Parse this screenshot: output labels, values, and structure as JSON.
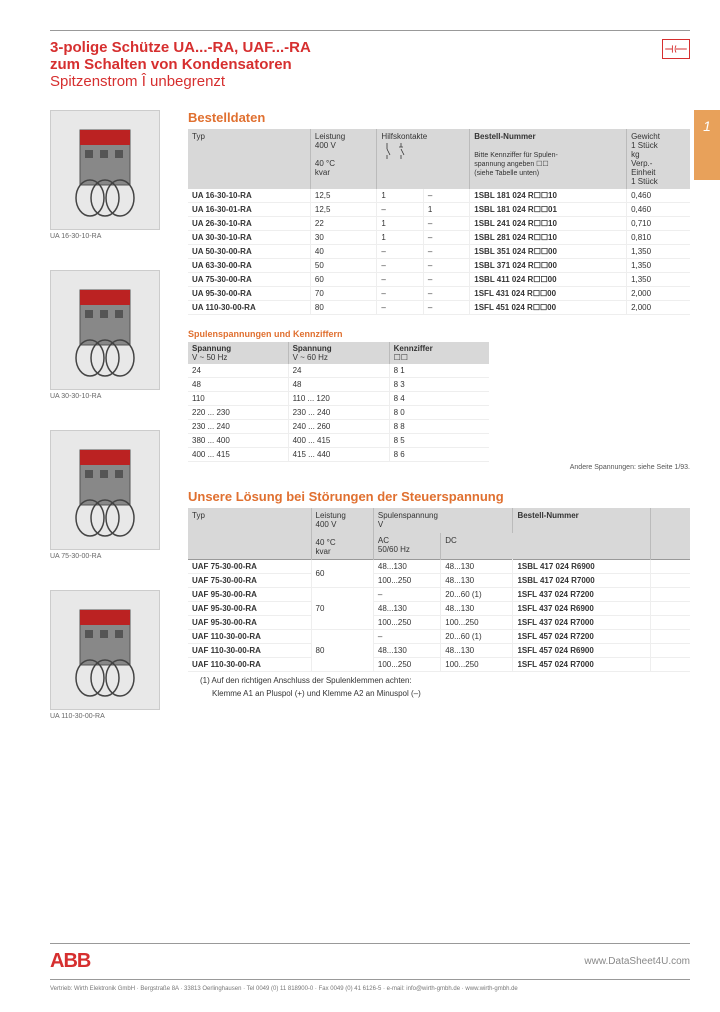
{
  "header": {
    "title_line1": "3-polige Schütze UA...-RA, UAF...-RA",
    "title_line2": "zum Schalten von Kondensatoren",
    "subtitle": "Spitzenstrom Î unbegrenzt",
    "page_tab": "1"
  },
  "sidebar_products": [
    {
      "caption": "UA 16-30-10-RA"
    },
    {
      "caption": "UA 30-30-10-RA"
    },
    {
      "caption": "UA 75-30-00-RA"
    },
    {
      "caption": "UA 110-30-00-RA"
    }
  ],
  "order_section": {
    "title": "Bestelldaten",
    "columns": {
      "typ": "Typ",
      "leistung_line1": "Leistung",
      "leistung_line2": "400 V",
      "leistung_line3": "40 °C",
      "leistung_line4": "kvar",
      "hk": "Hilfskontakte",
      "bestell": "Bestell-Nummer",
      "bestell_note1": "Bitte Kennziffer für Spulen-",
      "bestell_note2": "spannung angeben ☐☐",
      "bestell_note3": "(siehe Tabelle unten)",
      "gewicht_line1": "Gewicht",
      "gewicht_line2": "1 Stück",
      "gewicht_line3": "kg",
      "gewicht_line4": "Verp.-",
      "gewicht_line5": "Einheit",
      "gewicht_line6": "1 Stück"
    },
    "rows": [
      {
        "typ": "UA 16-30-10-RA",
        "kvar": "12,5",
        "hk1": "1",
        "hk2": "–",
        "order": "1SBL 181 024 R☐☐10",
        "weight": "0,460"
      },
      {
        "typ": "UA 16-30-01-RA",
        "kvar": "12,5",
        "hk1": "–",
        "hk2": "1",
        "order": "1SBL 181 024 R☐☐01",
        "weight": "0,460"
      },
      {
        "typ": "UA 26-30-10-RA",
        "kvar": "22",
        "hk1": "1",
        "hk2": "–",
        "order": "1SBL 241 024 R☐☐10",
        "weight": "0,710"
      },
      {
        "typ": "UA 30-30-10-RA",
        "kvar": "30",
        "hk1": "1",
        "hk2": "–",
        "order": "1SBL 281 024 R☐☐10",
        "weight": "0,810"
      },
      {
        "typ": "UA 50-30-00-RA",
        "kvar": "40",
        "hk1": "–",
        "hk2": "–",
        "order": "1SBL 351 024 R☐☐00",
        "weight": "1,350",
        "sep": true
      },
      {
        "typ": "UA 63-30-00-RA",
        "kvar": "50",
        "hk1": "–",
        "hk2": "–",
        "order": "1SBL 371 024 R☐☐00",
        "weight": "1,350",
        "sep": true
      },
      {
        "typ": "UA 75-30-00-RA",
        "kvar": "60",
        "hk1": "–",
        "hk2": "–",
        "order": "1SBL 411 024 R☐☐00",
        "weight": "1,350"
      },
      {
        "typ": "UA 95-30-00-RA",
        "kvar": "70",
        "hk1": "–",
        "hk2": "–",
        "order": "1SFL 431 024 R☐☐00",
        "weight": "2,000"
      },
      {
        "typ": "UA 110-30-00-RA",
        "kvar": "80",
        "hk1": "–",
        "hk2": "–",
        "order": "1SFL 451 024 R☐☐00",
        "weight": "2,000"
      }
    ]
  },
  "coil_section": {
    "title": "Spulenspannungen und Kennziffern",
    "columns": {
      "c1_line1": "Spannung",
      "c1_line2": "V ~ 50 Hz",
      "c2_line1": "Spannung",
      "c2_line2": "V ~ 60 Hz",
      "c3_line1": "Kennziffer",
      "c3_line2": "☐☐"
    },
    "rows": [
      {
        "v50": "24",
        "v60": "24",
        "code": "8 1"
      },
      {
        "v50": "48",
        "v60": "48",
        "code": "8 3"
      },
      {
        "v50": "110",
        "v60": "110 ... 120",
        "code": "8 4"
      },
      {
        "v50": "220 ... 230",
        "v60": "230 ... 240",
        "code": "8 0"
      },
      {
        "v50": "230 ... 240",
        "v60": "240 ... 260",
        "code": "8 8"
      },
      {
        "v50": "380 ... 400",
        "v60": "400 ... 415",
        "code": "8 5"
      },
      {
        "v50": "400 ... 415",
        "v60": "415 ... 440",
        "code": "8 6"
      }
    ],
    "footnote": "Andere Spannungen: siehe Seite 1/93."
  },
  "solution_section": {
    "title": "Unsere Lösung bei Störungen der Steuerspannung",
    "columns": {
      "typ": "Typ",
      "leistung_line1": "Leistung",
      "leistung_line2": "400 V",
      "leistung_line3": "40 °C",
      "leistung_line4": "kvar",
      "spulen_line1": "Spulenspannung",
      "spulen_line2": "V",
      "spulen_ac1": "AC",
      "spulen_ac2": "50/60 Hz",
      "spulen_dc": "DC",
      "bestell": "Bestell-Nummer"
    },
    "rows": [
      {
        "typ": "UAF 75-30-00-RA",
        "kvar": "60",
        "ac": "48...130",
        "dc": "48...130",
        "order": "1SBL 417 024 R6900",
        "sep": true,
        "rowspan_kvar": 2
      },
      {
        "typ": "UAF 75-30-00-RA",
        "kvar": "",
        "ac": "100...250",
        "dc": "48...130",
        "order": "1SBL 417 024 R7000"
      },
      {
        "typ": "UAF 95-30-00-RA",
        "kvar": "70",
        "ac": "–",
        "dc": "20...60 (1)",
        "order": "1SFL 437 024 R7200",
        "sep": true,
        "rowspan_kvar": 3
      },
      {
        "typ": "UAF 95-30-00-RA",
        "kvar": "",
        "ac": "48...130",
        "dc": "48...130",
        "order": "1SFL 437 024 R6900"
      },
      {
        "typ": "UAF 95-30-00-RA",
        "kvar": "",
        "ac": "100...250",
        "dc": "100...250",
        "order": "1SFL 437 024 R7000"
      },
      {
        "typ": "UAF 110-30-00-RA",
        "kvar": "80",
        "ac": "–",
        "dc": "20...60 (1)",
        "order": "1SFL 457 024 R7200",
        "sep": true,
        "rowspan_kvar": 3
      },
      {
        "typ": "UAF 110-30-00-RA",
        "kvar": "",
        "ac": "48...130",
        "dc": "48...130",
        "order": "1SFL 457 024 R6900"
      },
      {
        "typ": "UAF 110-30-00-RA",
        "kvar": "",
        "ac": "100...250",
        "dc": "100...250",
        "order": "1SFL 457 024 R7000"
      }
    ],
    "note_line1": "(1) Auf den richtigen Anschluss der Spulenklemmen achten:",
    "note_line2": "Klemme A1 an Pluspol (+) und Klemme A2 an Minuspol (–)"
  },
  "footer": {
    "logo": "ABB",
    "url": "www.DataSheet4U.com",
    "company_line": "Vertrieb: Wirth Elektronik GmbH · Bergstraße 8A · 33813 Oerlinghausen · Tel 0049 (0) 11 818900-0 · Fax 0049 (0) 41 6126-5 · e-mail: info@wirth-gmbh.de · www.wirth-gmbh.de"
  }
}
